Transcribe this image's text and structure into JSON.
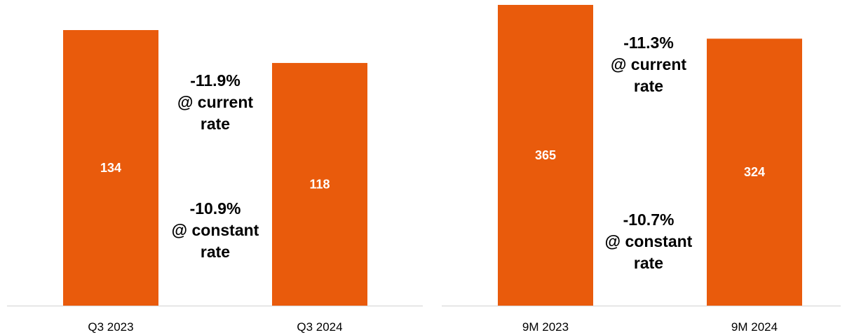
{
  "colors": {
    "bar": "#E95B0C",
    "axis": "#D9D9D9",
    "background": "#FFFFFF"
  },
  "chart_data": [
    {
      "type": "bar",
      "categories": [
        "Q3 2023",
        "Q3 2024"
      ],
      "values": [
        134,
        118
      ],
      "annotations": [
        {
          "label": "current",
          "lines": [
            "-11.9%",
            "@ current",
            "rate"
          ]
        },
        {
          "label": "constant",
          "lines": [
            "-10.9%",
            "@ constant",
            "rate"
          ]
        }
      ],
      "grid": false,
      "legend": "none"
    },
    {
      "type": "bar",
      "categories": [
        "9M 2023",
        "9M 2024"
      ],
      "values": [
        365,
        324
      ],
      "annotations": [
        {
          "label": "current",
          "lines": [
            "-11.3%",
            "@ current",
            "rate"
          ]
        },
        {
          "label": "constant",
          "lines": [
            "-10.7%",
            "@ constant",
            "rate"
          ]
        }
      ],
      "grid": false,
      "legend": "none"
    }
  ]
}
